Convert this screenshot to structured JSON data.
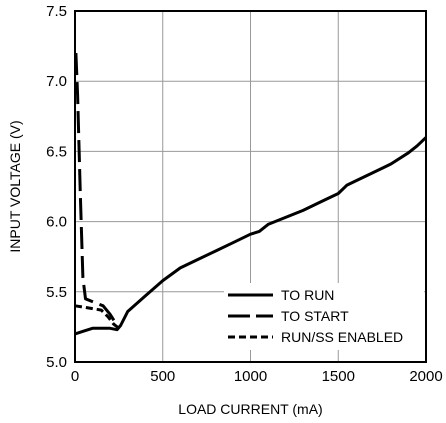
{
  "chart_data": {
    "type": "line",
    "title": "",
    "xlabel": "LOAD CURRENT (mA)",
    "ylabel": "INPUT VOLTAGE (V)",
    "xlim": [
      0,
      2000
    ],
    "ylim": [
      5.0,
      7.5
    ],
    "x_ticks": [
      0,
      500,
      1000,
      1500,
      2000
    ],
    "y_ticks": [
      5.0,
      5.5,
      6.0,
      6.5,
      7.0,
      7.5
    ],
    "x_tick_labels": [
      "0",
      "500",
      "1000",
      "1500",
      "2000"
    ],
    "y_tick_labels": [
      "5.0",
      "5.5",
      "6.0",
      "6.5",
      "7.0",
      "7.5"
    ],
    "grid": true,
    "legend_position": "bottom-right",
    "series": [
      {
        "name": "TO RUN",
        "style": "solid",
        "points": [
          [
            0,
            5.2
          ],
          [
            50,
            5.22
          ],
          [
            100,
            5.24
          ],
          [
            150,
            5.24
          ],
          [
            200,
            5.24
          ],
          [
            240,
            5.23
          ],
          [
            260,
            5.26
          ],
          [
            300,
            5.36
          ],
          [
            400,
            5.47
          ],
          [
            500,
            5.58
          ],
          [
            600,
            5.67
          ],
          [
            700,
            5.73
          ],
          [
            800,
            5.79
          ],
          [
            900,
            5.85
          ],
          [
            1000,
            5.91
          ],
          [
            1050,
            5.93
          ],
          [
            1100,
            5.98
          ],
          [
            1200,
            6.03
          ],
          [
            1300,
            6.08
          ],
          [
            1400,
            6.14
          ],
          [
            1500,
            6.2
          ],
          [
            1550,
            6.26
          ],
          [
            1600,
            6.29
          ],
          [
            1700,
            6.35
          ],
          [
            1800,
            6.41
          ],
          [
            1900,
            6.49
          ],
          [
            1950,
            6.54
          ],
          [
            2000,
            6.6
          ]
        ]
      },
      {
        "name": "TO START",
        "style": "long-dash",
        "points": [
          [
            5,
            7.2
          ],
          [
            15,
            6.9
          ],
          [
            30,
            6.2
          ],
          [
            45,
            5.6
          ],
          [
            60,
            5.45
          ],
          [
            100,
            5.43
          ],
          [
            160,
            5.4
          ],
          [
            200,
            5.34
          ],
          [
            250,
            5.24
          ]
        ]
      },
      {
        "name": "RUN/SS ENABLED",
        "style": "short-dash",
        "points": [
          [
            0,
            5.4
          ],
          [
            50,
            5.39
          ],
          [
            100,
            5.38
          ],
          [
            150,
            5.37
          ],
          [
            190,
            5.32
          ],
          [
            220,
            5.27
          ],
          [
            250,
            5.24
          ]
        ]
      }
    ],
    "colors": {
      "line": "#000000",
      "grid": "#999999",
      "background": "#ffffff"
    }
  }
}
